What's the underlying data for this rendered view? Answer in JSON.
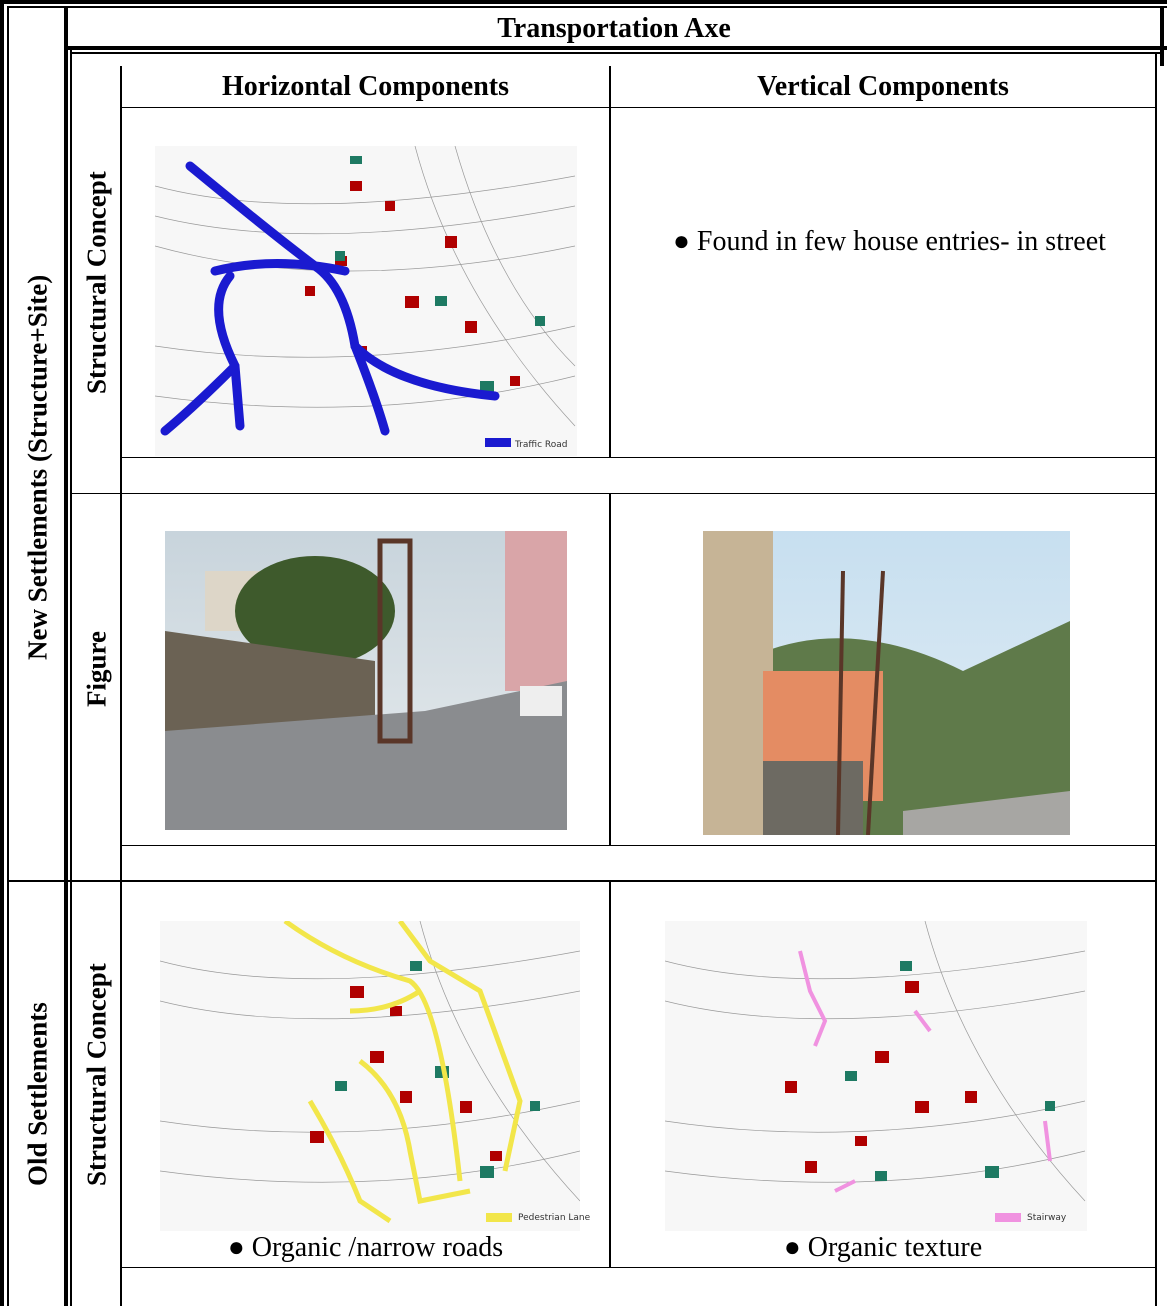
{
  "table": {
    "title": "Transportation Axe",
    "column_headers": [
      "Horizontal Components",
      "Vertical Components"
    ],
    "groups": [
      {
        "label": "New Settlements (Structure+Site)",
        "rows": [
          {
            "label": "Structural Concept",
            "horizontal": {
              "legend": "Traffic Road"
            },
            "vertical": {
              "text": "● Found in few house entries- in street"
            }
          },
          {
            "label": "Figure"
          }
        ]
      },
      {
        "label": "Old Settlements",
        "rows": [
          {
            "label": "Structural Concept",
            "horizontal": {
              "legend": "Pedestrian Lane",
              "text": "● Organic /narrow roads"
            },
            "vertical": {
              "legend": "Stairway",
              "text": "● Organic texture"
            }
          }
        ]
      }
    ]
  }
}
